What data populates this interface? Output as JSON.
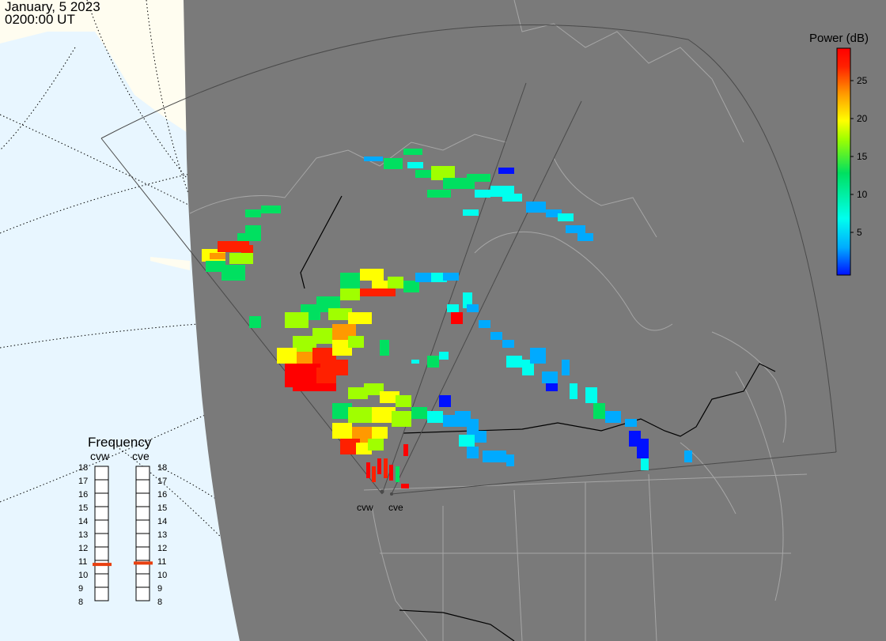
{
  "header": {
    "date": "January, 5 2023",
    "time": "0200:00 UT"
  },
  "colorbar": {
    "title": "Power (dB)",
    "min": 0,
    "max": 30,
    "ticks": [
      "5",
      "10",
      "15",
      "20",
      "25"
    ],
    "colors": [
      "#0010ff",
      "#00aaff",
      "#00ffee",
      "#00e060",
      "#a0ff00",
      "#ffff00",
      "#ff9900",
      "#ff2000",
      "#ff0000"
    ]
  },
  "frequency": {
    "title": "Frequency",
    "radars": [
      {
        "name": "cvw",
        "value_mhz": 10.7
      },
      {
        "name": "cve",
        "value_mhz": 10.8
      }
    ],
    "scale": [
      "18",
      "17",
      "16",
      "15",
      "14",
      "13",
      "12",
      "11",
      "10",
      "9",
      "8"
    ],
    "min": 8,
    "max": 18,
    "marker_color": "#e84010"
  },
  "sites": [
    "cvw",
    "cve"
  ],
  "colors": {
    "land_shade": "#7a7a7a",
    "ocean": "#e8f6ff",
    "land_lit": "#fffdf0",
    "boundaries": "#a6a6a6"
  }
}
